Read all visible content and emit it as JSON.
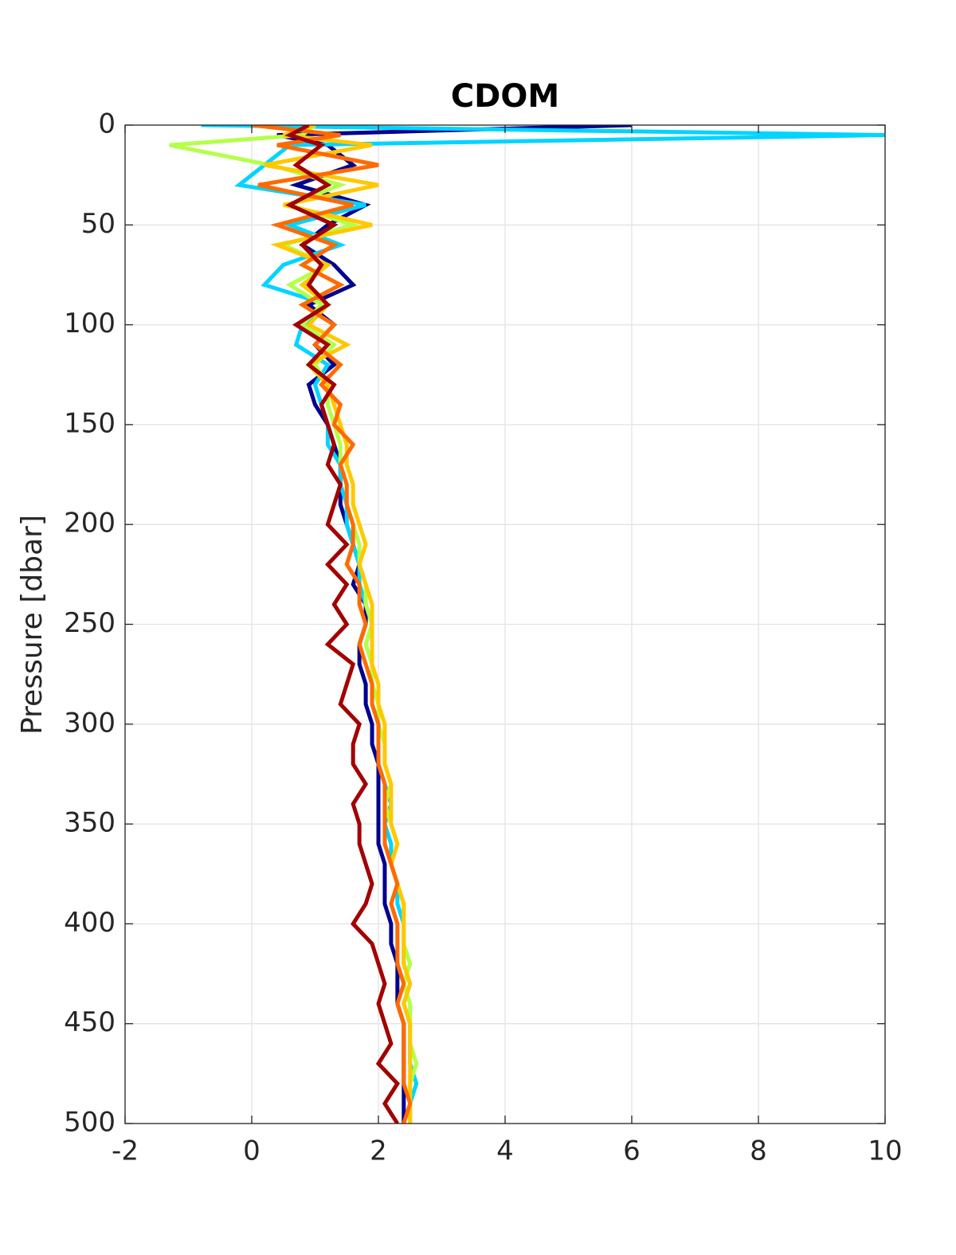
{
  "chart_data": {
    "type": "line",
    "title": "CDOM",
    "y_label": "Pressure [dbar]",
    "xlim": [
      -2,
      10
    ],
    "xticks": [
      -2,
      0,
      2,
      4,
      6,
      8,
      10
    ],
    "ylim": [
      0,
      500
    ],
    "yticks": [
      0,
      50,
      100,
      150,
      200,
      250,
      300,
      350,
      400,
      450,
      500
    ],
    "y_reversed": true,
    "grid": true,
    "y": [
      0,
      5,
      10,
      20,
      30,
      40,
      50,
      60,
      70,
      80,
      90,
      100,
      110,
      120,
      130,
      140,
      150,
      160,
      170,
      180,
      190,
      200,
      210,
      220,
      230,
      240,
      250,
      260,
      270,
      280,
      290,
      300,
      310,
      320,
      330,
      340,
      350,
      360,
      370,
      380,
      390,
      400,
      410,
      420,
      430,
      440,
      450,
      460,
      470,
      480,
      490,
      500
    ],
    "series": [
      {
        "color": "#00008f",
        "values": [
          6.0,
          0.4,
          1.2,
          1.6,
          0.7,
          1.8,
          1.2,
          0.8,
          1.3,
          1.6,
          0.9,
          1.3,
          1.0,
          1.3,
          0.9,
          1.0,
          1.2,
          1.3,
          1.4,
          1.4,
          1.4,
          1.5,
          1.6,
          1.7,
          1.6,
          1.8,
          1.8,
          1.7,
          1.7,
          1.8,
          1.8,
          1.9,
          1.9,
          2.0,
          2.0,
          2.0,
          2.0,
          2.0,
          2.1,
          2.1,
          2.1,
          2.2,
          2.2,
          2.3,
          2.3,
          2.3,
          2.4,
          2.4,
          2.4,
          2.4,
          2.4,
          2.4
        ]
      },
      {
        "color": "#00d4ff",
        "values": [
          -0.8,
          10.0,
          0.6,
          0.2,
          -0.2,
          1.8,
          0.6,
          1.4,
          0.5,
          0.2,
          1.2,
          0.8,
          0.7,
          1.2,
          1.0,
          1.1,
          1.2,
          1.2,
          1.4,
          1.4,
          1.5,
          1.5,
          1.6,
          1.7,
          1.7,
          1.8,
          1.9,
          1.8,
          1.9,
          1.9,
          1.9,
          2.0,
          2.0,
          2.0,
          2.1,
          2.2,
          2.1,
          2.2,
          2.2,
          2.3,
          2.3,
          2.4,
          2.4,
          2.4,
          2.5,
          2.4,
          2.5,
          2.5,
          2.5,
          2.6,
          2.5,
          2.5
        ]
      },
      {
        "color": "#b4ff4a",
        "values": [
          1.0,
          0.8,
          -1.3,
          0.3,
          1.4,
          0.6,
          1.6,
          0.5,
          1.2,
          0.6,
          1.1,
          0.8,
          1.3,
          1.0,
          1.2,
          1.2,
          1.3,
          1.4,
          1.4,
          1.5,
          1.5,
          1.6,
          1.7,
          1.7,
          1.8,
          1.8,
          1.9,
          1.8,
          1.9,
          1.9,
          2.0,
          2.0,
          2.1,
          2.1,
          2.2,
          2.1,
          2.2,
          2.3,
          2.2,
          2.3,
          2.4,
          2.4,
          2.4,
          2.5,
          2.4,
          2.5,
          2.5,
          2.5,
          2.6,
          2.5,
          2.5,
          2.5
        ]
      },
      {
        "color": "#ffc800",
        "values": [
          1.0,
          0.5,
          1.9,
          0.2,
          2.0,
          0.5,
          1.9,
          0.4,
          1.2,
          0.8,
          1.2,
          0.9,
          1.5,
          0.9,
          1.2,
          1.3,
          1.4,
          1.5,
          1.5,
          1.6,
          1.6,
          1.7,
          1.8,
          1.7,
          1.8,
          1.9,
          1.9,
          1.9,
          1.9,
          2.0,
          2.0,
          2.1,
          2.1,
          2.1,
          2.2,
          2.2,
          2.2,
          2.3,
          2.2,
          2.3,
          2.4,
          2.4,
          2.4,
          2.4,
          2.5,
          2.4,
          2.5,
          2.5,
          2.5,
          2.5,
          2.5,
          2.5
        ]
      },
      {
        "color": "#ff6a00",
        "values": [
          0.0,
          1.4,
          0.4,
          2.0,
          0.1,
          1.6,
          0.4,
          1.3,
          0.8,
          1.4,
          0.8,
          1.3,
          1.0,
          1.4,
          1.1,
          1.4,
          1.3,
          1.6,
          1.4,
          1.5,
          1.5,
          1.6,
          1.6,
          1.5,
          1.7,
          1.7,
          1.8,
          1.7,
          1.8,
          1.9,
          1.9,
          2.0,
          2.0,
          2.0,
          2.1,
          2.1,
          2.1,
          2.1,
          2.2,
          2.3,
          2.2,
          2.3,
          2.3,
          2.3,
          2.4,
          2.3,
          2.4,
          2.4,
          2.4,
          2.4,
          2.5,
          2.4
        ]
      },
      {
        "color": "#a30000",
        "values": [
          0.9,
          0.6,
          1.1,
          0.7,
          1.2,
          0.6,
          1.3,
          0.8,
          1.1,
          0.9,
          1.2,
          0.7,
          1.2,
          0.9,
          1.3,
          1.1,
          1.2,
          1.3,
          1.2,
          1.4,
          1.3,
          1.2,
          1.5,
          1.2,
          1.5,
          1.3,
          1.5,
          1.2,
          1.6,
          1.5,
          1.4,
          1.7,
          1.6,
          1.6,
          1.8,
          1.6,
          1.7,
          1.7,
          1.8,
          1.9,
          1.8,
          1.6,
          1.9,
          2.0,
          2.1,
          2.0,
          2.1,
          2.2,
          2.0,
          2.3,
          2.1,
          2.3
        ]
      }
    ]
  }
}
